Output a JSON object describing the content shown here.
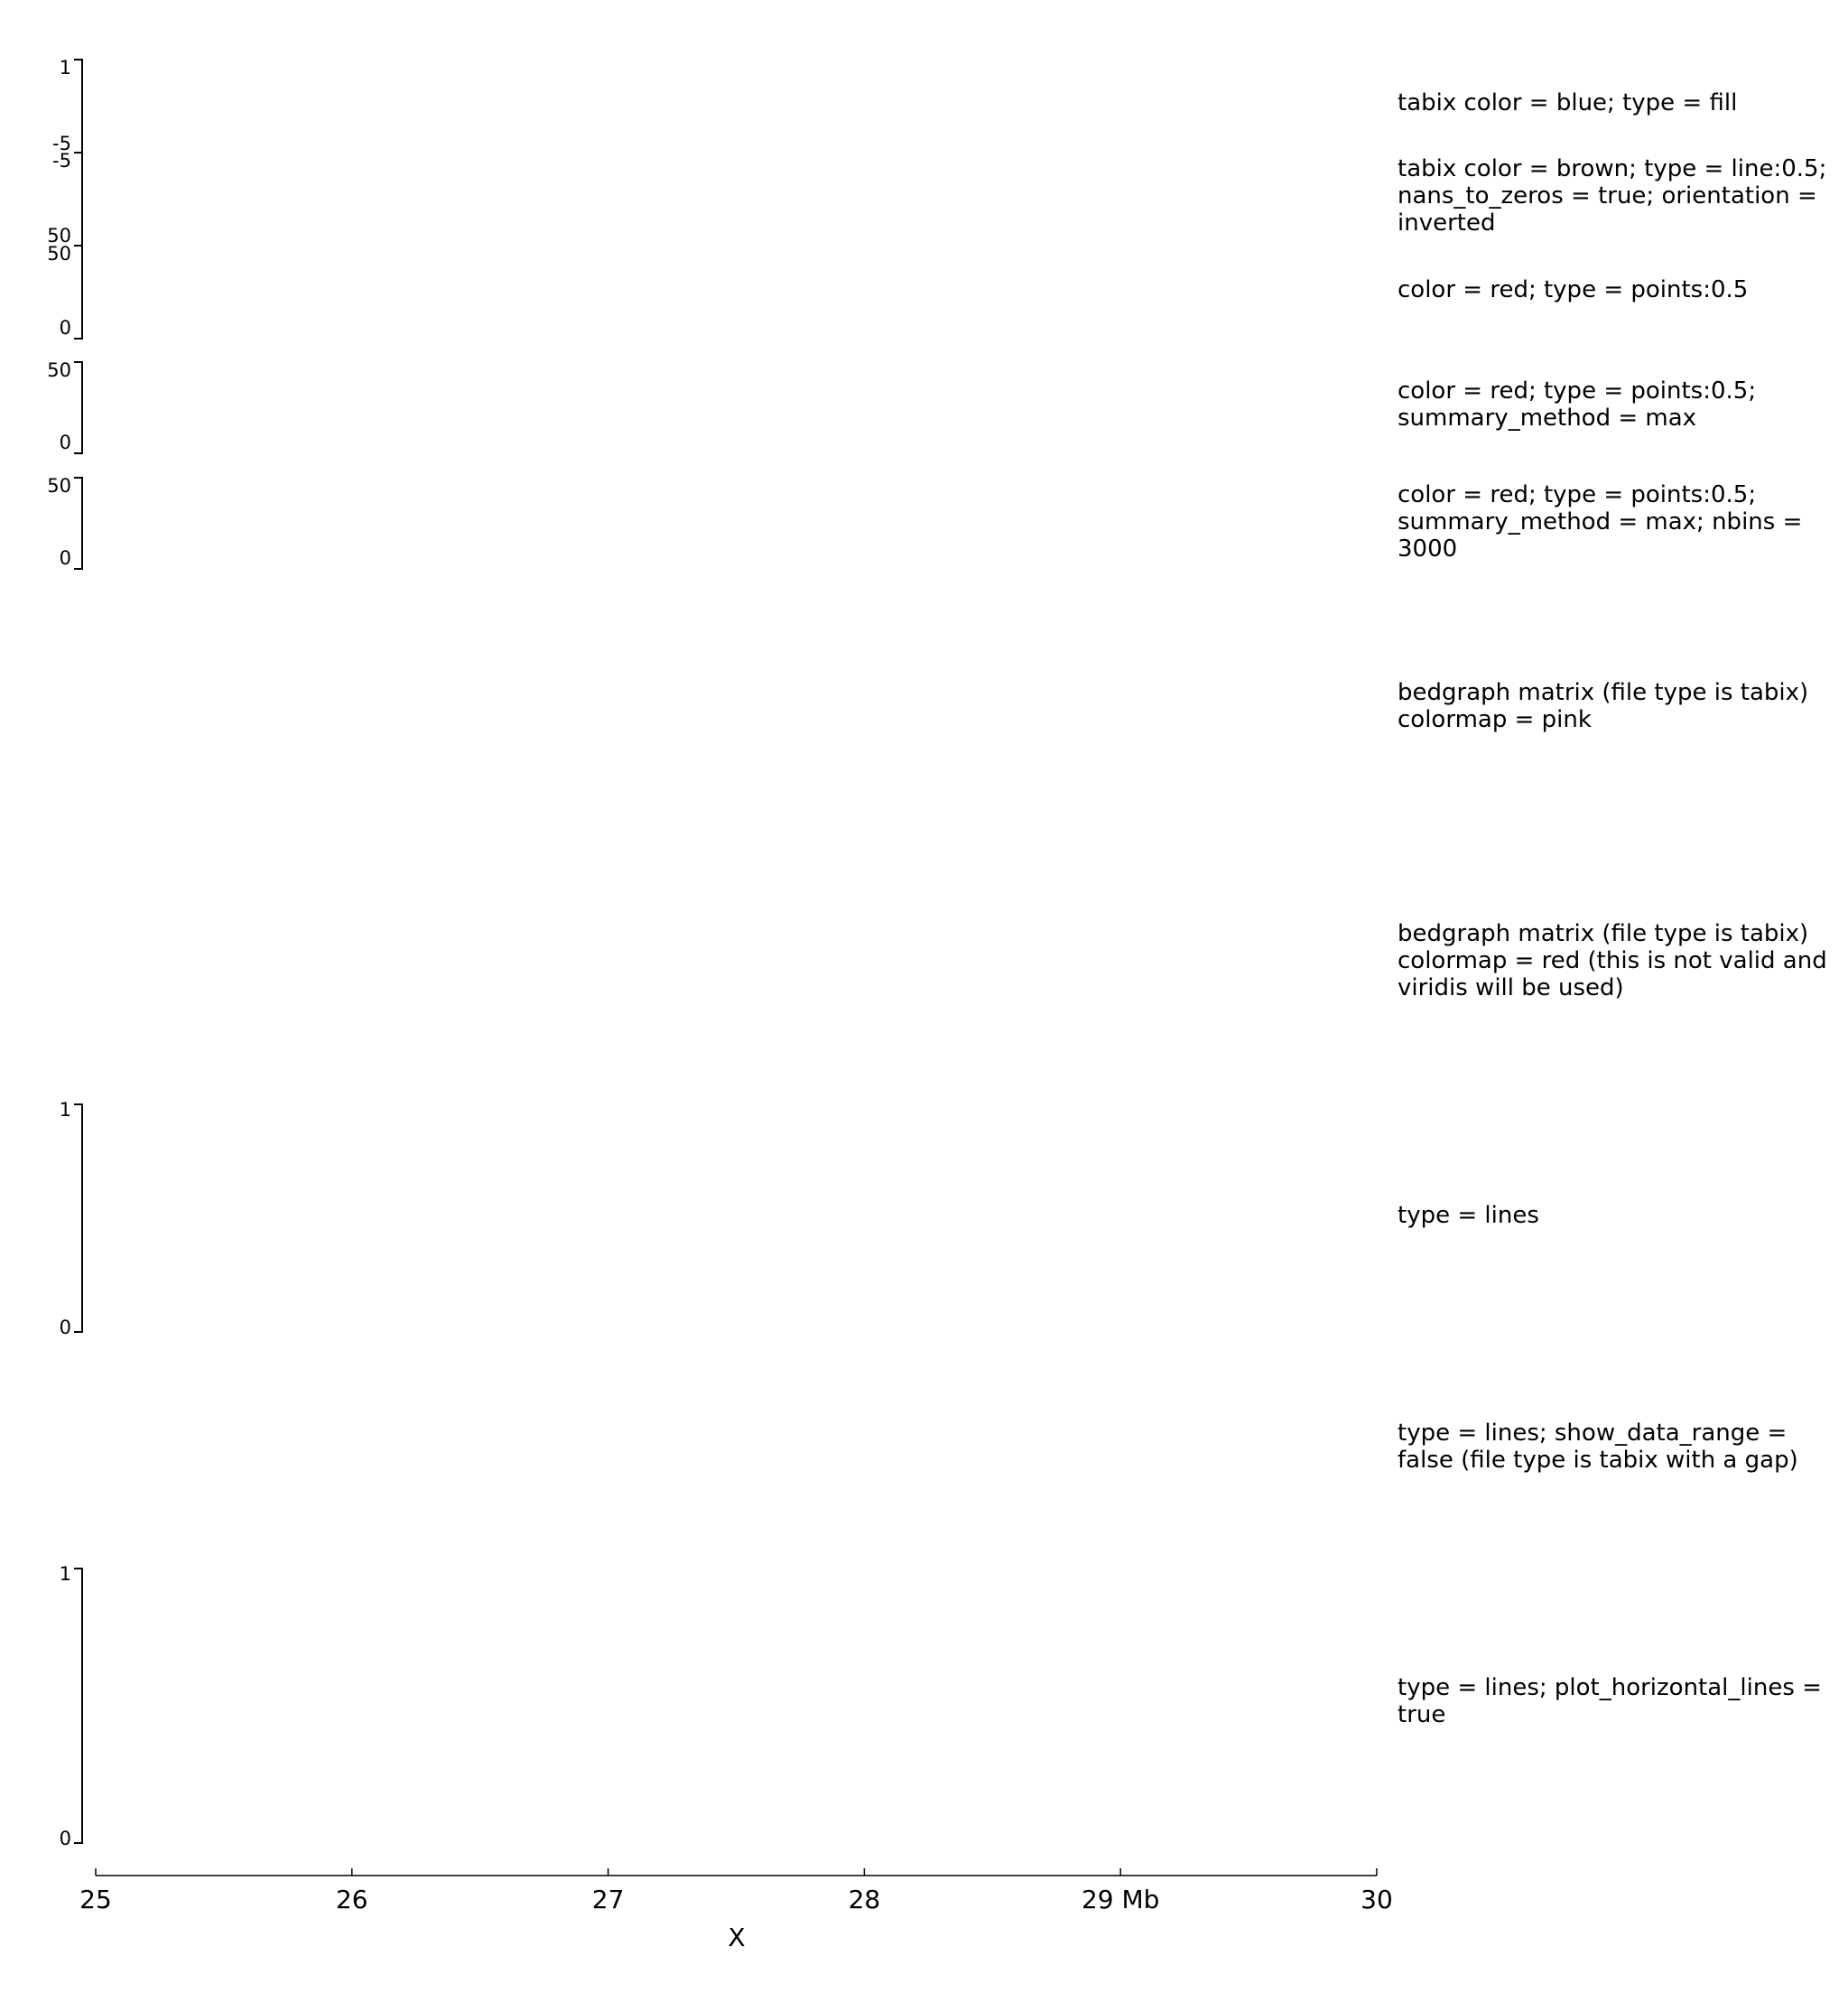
{
  "tracks": [
    {
      "label": "tabix color = blue; type = fill",
      "y_max": "1",
      "y_min": "-5"
    },
    {
      "label": "tabix color = brown; type = line:0.5;\nnans_to_zeros = true; orientation =\ninverted",
      "y_max": "-5",
      "y_min": "50"
    },
    {
      "label": "color = red; type = points:0.5",
      "y_max": "50",
      "y_min": "0"
    },
    {
      "label": "color = red; type = points:0.5;\nsummary_method = max",
      "y_max": "50",
      "y_min": "0"
    },
    {
      "label": "color = red; type = points:0.5;\nsummary_method = max; nbins =\n3000",
      "y_max": "50",
      "y_min": "0"
    },
    {
      "label": "bedgraph matrix (file type is tabix)\ncolormap = pink"
    },
    {
      "label": "bedgraph matrix (file type is tabix)\ncolormap = red (this is not valid and\nviridis will be used)"
    },
    {
      "label": "type = lines",
      "y_max": "1",
      "y_min": "0"
    },
    {
      "label": "type = lines; show_data_range =\nfalse (file type is tabix with a gap)"
    },
    {
      "label": "type = lines; plot_horizontal_lines =\ntrue",
      "y_max": "1",
      "y_min": "0"
    }
  ],
  "chart_data": {
    "type": "line",
    "x_axis": {
      "label": "X",
      "ticks": [
        25,
        26,
        27,
        28,
        29,
        30
      ],
      "tick_labels": [
        "25",
        "26",
        "27",
        "28",
        "29 Mb",
        "30"
      ],
      "range": [
        25,
        30
      ]
    },
    "series": [],
    "legend": "none",
    "grid": false
  }
}
